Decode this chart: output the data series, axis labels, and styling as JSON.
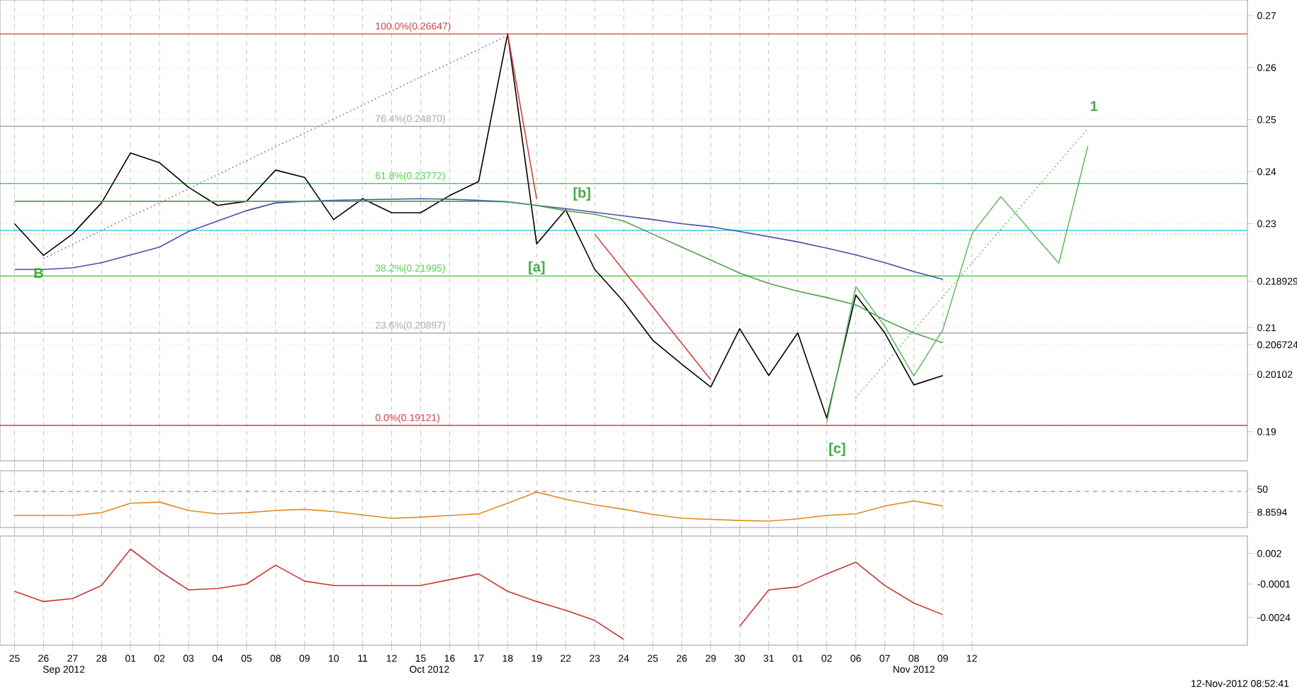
{
  "chart_data": [
    {
      "type": "line",
      "grid": true,
      "tick_labels": "y",
      "marker": "none",
      "categories": [
        "25",
        "26",
        "27",
        "28",
        "01",
        "02",
        "03",
        "04",
        "05",
        "08",
        "09",
        "10",
        "11",
        "12",
        "15",
        "16",
        "17",
        "18",
        "19",
        "22",
        "23",
        "24",
        "25",
        "26",
        "29",
        "30",
        "31",
        "01",
        "02",
        "06",
        "07",
        "08",
        "09",
        "12",
        null,
        null,
        null,
        null,
        null,
        null,
        null,
        null,
        null
      ],
      "ylim": [
        0.1844,
        0.273
      ],
      "yticks": [
        0.19,
        0.20102,
        0.206724,
        0.21,
        0.218929,
        0.23,
        0.24,
        0.25,
        0.26,
        0.27
      ],
      "series": [
        {
          "color": "#000000",
          "line_style": "solid",
          "values": [
            0.23,
            0.2239,
            0.228,
            0.234,
            0.2436,
            0.2417,
            0.237,
            0.2335,
            0.2343,
            0.2403,
            0.2389,
            0.2308,
            0.2348,
            0.2321,
            0.2321,
            0.2354,
            0.2381,
            0.2665,
            0.2261,
            0.2327,
            0.2212,
            0.215,
            0.2076,
            0.203,
            0.1986,
            0.2098,
            0.2008,
            0.209,
            0.1926,
            0.2163,
            0.209,
            0.199,
            0.2008,
            null,
            null,
            null,
            null,
            null,
            null,
            null,
            null,
            null,
            null
          ]
        },
        {
          "color": "#4a4fa8",
          "line_style": "solid",
          "values": [
            0.2212,
            0.2212,
            0.2215,
            0.2225,
            0.224,
            0.2255,
            0.2285,
            0.2305,
            0.2325,
            0.234,
            0.2343,
            0.2345,
            0.2346,
            0.2347,
            0.2348,
            0.2347,
            0.2345,
            0.2342,
            0.2335,
            0.2329,
            0.2322,
            0.2315,
            0.2308,
            0.23,
            0.2294,
            0.2285,
            0.2275,
            0.2265,
            0.2253,
            0.224,
            0.2225,
            0.2208,
            0.2193,
            null,
            null,
            null,
            null,
            null,
            null,
            null,
            null,
            null,
            null
          ]
        },
        {
          "color": "#4f9f4f",
          "line_style": "solid",
          "values": [
            0.2343,
            0.2343,
            0.2343,
            0.2343,
            0.2343,
            0.2343,
            0.2343,
            0.2343,
            0.2343,
            0.2343,
            0.2343,
            0.2343,
            0.2343,
            0.2343,
            0.2343,
            0.2343,
            0.2343,
            0.2342,
            0.2335,
            0.2325,
            0.2318,
            0.2305,
            0.228,
            0.2255,
            0.223,
            0.2205,
            0.2185,
            0.217,
            0.2158,
            0.2144,
            0.2115,
            0.209,
            0.2071,
            null,
            null,
            null,
            null,
            null,
            null,
            null,
            null,
            null,
            null
          ]
        },
        {
          "color": "#6a6ac0",
          "line_style": "dotted",
          "values": [
            null,
            0.2233,
            0.226,
            0.2287,
            0.2314,
            0.234,
            0.2367,
            0.2394,
            0.2421,
            0.2448,
            0.2474,
            0.2501,
            0.2528,
            0.2555,
            0.2582,
            0.2608,
            0.2635,
            0.2662,
            null,
            null,
            null,
            null,
            null,
            null,
            null,
            null,
            null,
            null,
            null,
            null,
            null,
            null,
            null,
            null,
            null,
            null,
            null,
            null,
            null,
            null,
            null,
            null,
            null
          ]
        },
        {
          "color": "#d04040",
          "line_style": "solid",
          "values": [
            null,
            null,
            null,
            null,
            null,
            null,
            null,
            null,
            null,
            null,
            null,
            null,
            null,
            null,
            null,
            null,
            null,
            0.2665,
            0.2347,
            null,
            null,
            null,
            null,
            null,
            null,
            null,
            null,
            null,
            null,
            null,
            null,
            null,
            null,
            null,
            null,
            null,
            null,
            null,
            null,
            null,
            null,
            null,
            null
          ]
        },
        {
          "color": "#d04040",
          "line_style": "solid",
          "values": [
            null,
            null,
            null,
            null,
            null,
            null,
            null,
            null,
            null,
            null,
            null,
            null,
            null,
            null,
            null,
            null,
            null,
            null,
            null,
            null,
            0.228,
            0.221,
            0.214,
            0.207,
            0.2,
            null,
            null,
            null,
            null,
            null,
            null,
            null,
            null,
            null,
            null,
            null,
            null,
            null,
            null,
            null,
            null,
            null,
            null
          ]
        },
        {
          "color": "#55bb55",
          "line_style": "dotted",
          "values": [
            null,
            null,
            null,
            null,
            null,
            null,
            null,
            null,
            null,
            null,
            null,
            null,
            null,
            null,
            null,
            null,
            null,
            null,
            null,
            null,
            null,
            null,
            null,
            null,
            null,
            null,
            null,
            null,
            null,
            0.1966,
            0.203,
            0.2095,
            0.216,
            0.2224,
            0.2289,
            0.2353,
            0.2418,
            0.2483,
            null,
            null,
            null,
            null,
            null
          ]
        },
        {
          "color": "#66bb66",
          "line_style": "solid",
          "values": [
            null,
            null,
            null,
            null,
            null,
            null,
            null,
            null,
            null,
            null,
            null,
            null,
            null,
            null,
            null,
            null,
            null,
            null,
            null,
            null,
            null,
            null,
            null,
            null,
            null,
            null,
            null,
            null,
            0.1918,
            0.2179,
            0.2103,
            0.2007,
            0.2096,
            0.228,
            0.2352,
            0.2288,
            0.2224,
            0.2449,
            null,
            null,
            null,
            null,
            null
          ]
        }
      ],
      "ref_lines": [
        {
          "axis": "y",
          "value": 0.26647,
          "label": "100.0%(0.26647)",
          "color": "#d04040"
        },
        {
          "axis": "y",
          "value": 0.2487,
          "label": "76.4%(0.24870)",
          "color": "#aaaaaa"
        },
        {
          "axis": "y",
          "value": 0.23772,
          "label": "61.8%(0.23772)",
          "color": "#55cc55"
        },
        {
          "axis": "y",
          "value": 0.2287,
          "color": "#44ccdd"
        },
        {
          "axis": "y",
          "value": 0.228,
          "color": "#e0a030",
          "line_style": "dotted"
        },
        {
          "axis": "y",
          "value": 0.21995,
          "label": "38.2%(0.21995)",
          "color": "#55cc55"
        },
        {
          "axis": "y",
          "value": 0.20897,
          "label": "23.6%(0.20897)",
          "color": "#aaaaaa"
        },
        {
          "axis": "y",
          "value": 0.19121,
          "label": "0.0%(0.19121)",
          "color": "#d04040"
        }
      ],
      "annotations": [
        "B",
        "[a]",
        "[b]",
        "[c]",
        "1"
      ]
    },
    {
      "type": "line",
      "grid": "x",
      "tick_labels": "y",
      "marker": "none",
      "categories": [
        "25",
        "26",
        "27",
        "28",
        "01",
        "02",
        "03",
        "04",
        "05",
        "08",
        "09",
        "10",
        "11",
        "12",
        "15",
        "16",
        "17",
        "18",
        "19",
        "22",
        "23",
        "24",
        "25",
        "26",
        "29",
        "30",
        "31",
        "01",
        "02",
        "06",
        "07",
        "08",
        "09",
        "12",
        null,
        null,
        null,
        null,
        null,
        null,
        null,
        null,
        null
      ],
      "ylim": [
        -18.5,
        83
      ],
      "yticks": [
        8.8594,
        50
      ],
      "series": [
        {
          "color": "#e08a1e",
          "line_style": "solid",
          "values": [
            3,
            3,
            3,
            8,
            25,
            27,
            12,
            6,
            8,
            12,
            14,
            10,
            4,
            -2,
            0,
            3,
            6,
            25,
            45,
            32,
            22,
            14,
            5,
            -2,
            -4,
            -6,
            -7,
            -3,
            3,
            6,
            20,
            29,
            20,
            null,
            null,
            null,
            null,
            null,
            null,
            null,
            null,
            null,
            null
          ]
        }
      ],
      "ref_lines": [
        {
          "axis": "y",
          "value": 46,
          "color": "#e07070",
          "line_style": "dashed"
        }
      ]
    },
    {
      "type": "line",
      "grid": "x",
      "marker": "none",
      "categories": [
        "25",
        "26",
        "27",
        "28",
        "01",
        "02",
        "03",
        "04",
        "05",
        "08",
        "09",
        "10",
        "11",
        "12",
        "15",
        "16",
        "17",
        "18",
        "19",
        "22",
        "23",
        "24",
        "25",
        "26",
        "29",
        "30",
        "31",
        "01",
        "02",
        "06",
        "07",
        "08",
        "09",
        "12",
        null,
        null,
        null,
        null,
        null,
        null,
        null,
        null,
        null
      ],
      "ylim": [
        -0.0043,
        0.0032
      ],
      "yticks": [
        -0.0024,
        -0.0001,
        0.002
      ],
      "series": [
        {
          "color": "#cc3333",
          "line_style": "solid",
          "values": [
            -0.0006,
            -0.0013,
            -0.0011,
            -0.0002,
            0.0023,
            0.0008,
            -0.0005,
            -0.0004,
            -0.0001,
            0.0012,
            0.0001,
            -0.0002,
            -0.0002,
            -0.0002,
            -0.0002,
            0.0002,
            0.0006,
            -0.0006,
            -0.0013,
            -0.0019,
            -0.0026,
            -0.0039,
            null,
            null,
            null,
            -0.003,
            -0.0005,
            -0.0003,
            0.0006,
            0.0014,
            -0.0002,
            -0.0014,
            -0.0022,
            null,
            null,
            null,
            null,
            null,
            null,
            null,
            null,
            null,
            null
          ]
        }
      ],
      "annotations": [
        "Sep 2012",
        "Oct 2012",
        "Nov 2012",
        "12-Nov-2012 08:52:41"
      ]
    }
  ]
}
